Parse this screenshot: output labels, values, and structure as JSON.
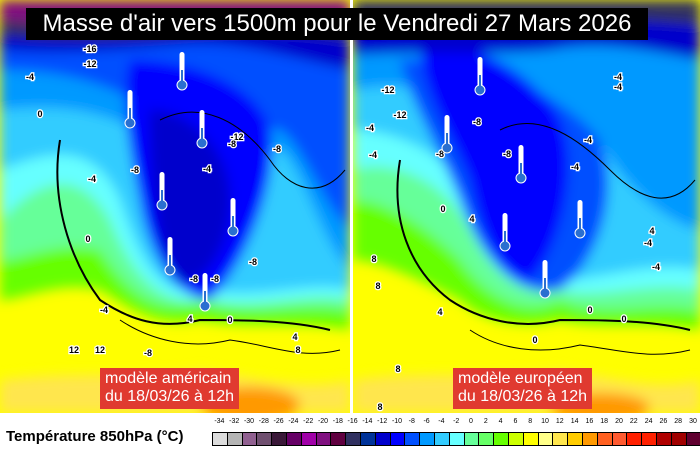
{
  "title": "Masse d'air vers 1500m pour le Vendredi 27 Mars 2026",
  "panels": [
    {
      "caption_line1": "modèle américain",
      "caption_line2": "du 18/03/26 à 12h",
      "isotherm_labels": [
        "-16",
        "-12",
        "-4",
        "0",
        "-4",
        "0",
        "-8",
        "-12",
        "-8",
        "-4",
        "-8",
        "-8",
        "-8",
        "-8",
        "-4",
        "4",
        "0",
        "12",
        "12",
        "-8",
        "8",
        "4"
      ]
    },
    {
      "caption_line1": "modèle européen",
      "caption_line2": "du 18/03/26 à 12h",
      "isotherm_labels": [
        "-12",
        "-12",
        "-4",
        "-4",
        "-8",
        "-8",
        "-8",
        "-4",
        "-4",
        "-4",
        "-4",
        "0",
        "4",
        "4",
        "-4",
        "-4",
        "8",
        "8",
        "4",
        "0",
        "0",
        "0",
        "8",
        "8"
      ]
    }
  ],
  "legend": {
    "label": "Température 850hPa (°C)",
    "ticks": [
      "-34",
      "-32",
      "-30",
      "-28",
      "-26",
      "-24",
      "-22",
      "-20",
      "-18",
      "-16",
      "-14",
      "-12",
      "-10",
      "-8",
      "-6",
      "-4",
      "-2",
      "0",
      "2",
      "4",
      "6",
      "8",
      "10",
      "12",
      "14",
      "16",
      "18",
      "20",
      "22",
      "24",
      "26",
      "28",
      "30"
    ],
    "colors": [
      "#dcdcdc",
      "#b4b4b4",
      "#906090",
      "#705070",
      "#3a1838",
      "#660066",
      "#a000a8",
      "#801080",
      "#600040",
      "#303060",
      "#003399",
      "#0000cc",
      "#0000ff",
      "#0050ff",
      "#0099ff",
      "#33ccff",
      "#66ffff",
      "#66ff99",
      "#66ff66",
      "#66ff00",
      "#ccff00",
      "#ffff00",
      "#ffff88",
      "#ffe64d",
      "#ffcc00",
      "#ff9900",
      "#ff6020",
      "#ff5a30",
      "#ff2000",
      "#ff2000",
      "#b00000",
      "#a00000",
      "#600030"
    ]
  },
  "icons": {
    "thermometer": "thermometer-icon"
  }
}
